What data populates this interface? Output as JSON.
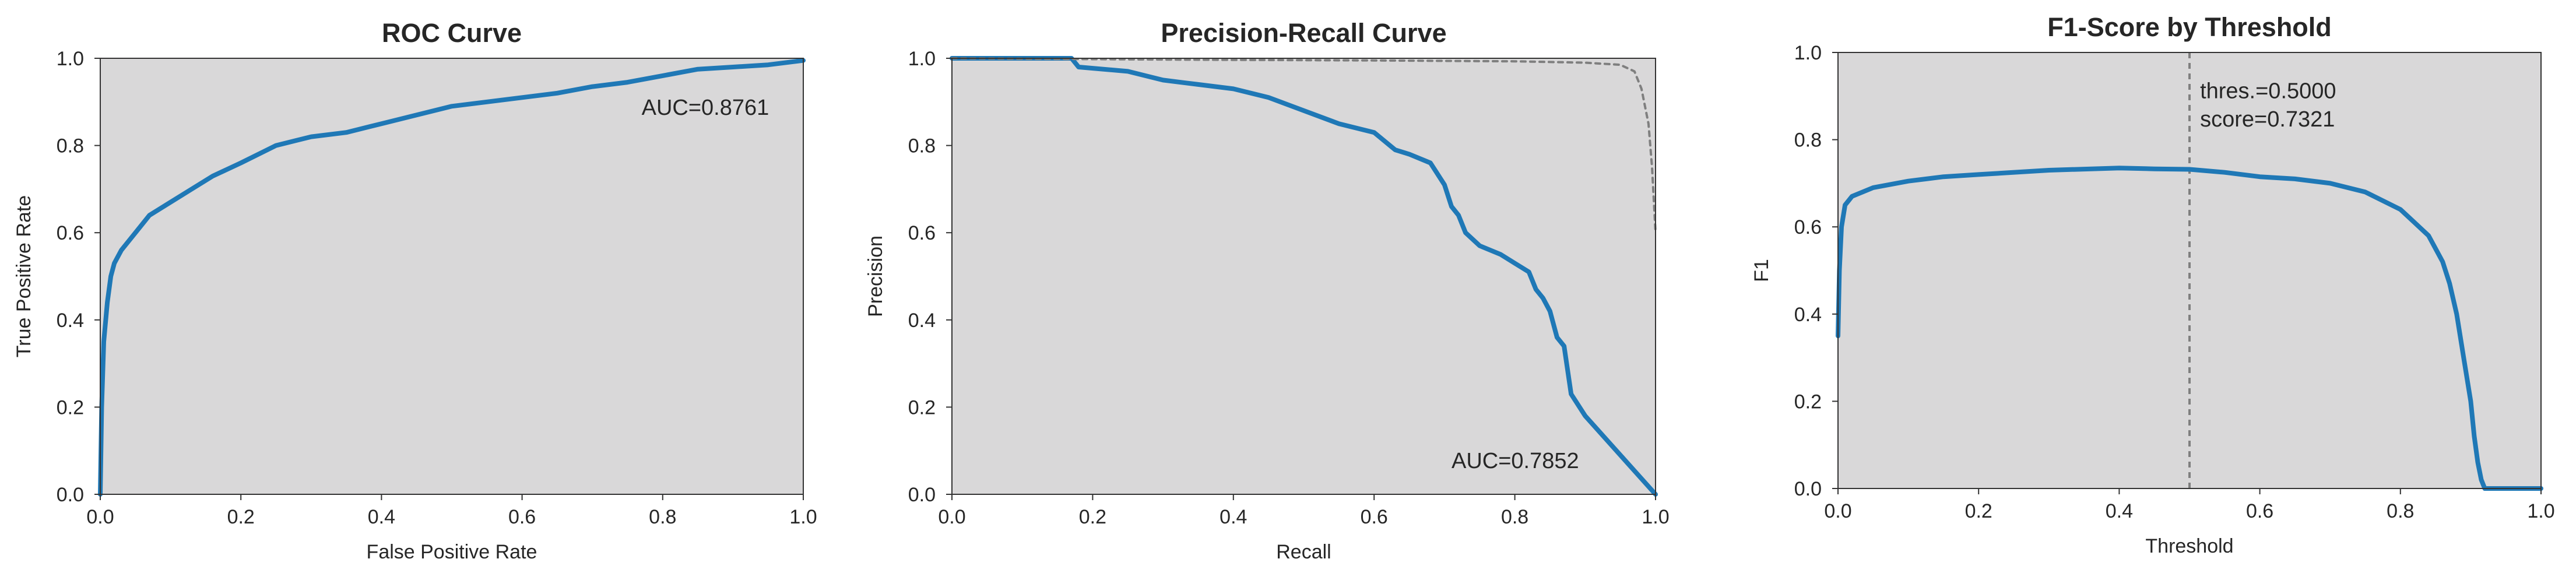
{
  "colors": {
    "plot_bg": "#d9d8d9",
    "line": "#1f78b6",
    "ref_line": "#7f7f7f",
    "axis": "#333333",
    "text": "#262626"
  },
  "chart_data": [
    {
      "type": "line",
      "title": "ROC Curve",
      "xlabel": "False Positive Rate",
      "ylabel": "True Positive Rate",
      "xlim": [
        0,
        1
      ],
      "ylim": [
        0,
        1
      ],
      "xticks": [
        "0.0",
        "0.2",
        "0.4",
        "0.6",
        "0.8",
        "1.0"
      ],
      "yticks": [
        "0.0",
        "0.2",
        "0.4",
        "0.6",
        "0.8",
        "1.0"
      ],
      "grid": false,
      "annotations": [
        {
          "text": "AUC=0.8761",
          "x": 0.77,
          "y": 0.87
        }
      ],
      "series": [
        {
          "x": [
            0,
            0.002,
            0.005,
            0.01,
            0.015,
            0.02,
            0.03,
            0.04,
            0.05,
            0.07,
            0.1,
            0.13,
            0.16,
            0.2,
            0.25,
            0.3,
            0.35,
            0.4,
            0.45,
            0.5,
            0.55,
            0.6,
            0.65,
            0.7,
            0.75,
            0.8,
            0.85,
            0.9,
            0.95,
            1.0
          ],
          "y": [
            0,
            0.2,
            0.35,
            0.44,
            0.5,
            0.53,
            0.56,
            0.58,
            0.6,
            0.64,
            0.67,
            0.7,
            0.73,
            0.76,
            0.8,
            0.82,
            0.83,
            0.85,
            0.87,
            0.89,
            0.9,
            0.91,
            0.92,
            0.935,
            0.945,
            0.96,
            0.975,
            0.98,
            0.985,
            0.995
          ]
        }
      ]
    },
    {
      "type": "line",
      "title": "Precision-Recall Curve",
      "xlabel": "Recall",
      "ylabel": "Precision",
      "xlim": [
        0,
        1
      ],
      "ylim": [
        0,
        1
      ],
      "xticks": [
        "0.0",
        "0.2",
        "0.4",
        "0.6",
        "0.8",
        "1.0"
      ],
      "yticks": [
        "0.0",
        "0.2",
        "0.4",
        "0.6",
        "0.8",
        "1.0"
      ],
      "grid": false,
      "annotations": [
        {
          "text": "AUC=0.7852",
          "x": 0.71,
          "y": 0.06
        }
      ],
      "series": [
        {
          "style": "solid",
          "x": [
            0,
            0.17,
            0.18,
            0.25,
            0.3,
            0.35,
            0.4,
            0.45,
            0.5,
            0.55,
            0.6,
            0.63,
            0.65,
            0.68,
            0.7,
            0.71,
            0.72,
            0.73,
            0.75,
            0.78,
            0.8,
            0.82,
            0.83,
            0.84,
            0.85,
            0.86,
            0.87,
            0.88,
            0.9,
            0.95,
            1.0
          ],
          "y": [
            1.0,
            1.0,
            0.98,
            0.97,
            0.95,
            0.94,
            0.93,
            0.91,
            0.88,
            0.85,
            0.83,
            0.79,
            0.78,
            0.76,
            0.71,
            0.66,
            0.64,
            0.6,
            0.57,
            0.55,
            0.53,
            0.51,
            0.47,
            0.45,
            0.42,
            0.36,
            0.34,
            0.23,
            0.18,
            0.09,
            0.0
          ]
        },
        {
          "style": "dashed",
          "x": [
            0,
            0.3,
            0.6,
            0.8,
            0.9,
            0.95,
            0.97,
            0.98,
            0.99,
            0.995,
            1.0
          ],
          "y": [
            1.0,
            0.997,
            0.995,
            0.993,
            0.99,
            0.985,
            0.97,
            0.93,
            0.85,
            0.75,
            0.6
          ]
        }
      ]
    },
    {
      "type": "line",
      "title": "F1-Score by Threshold",
      "xlabel": "Threshold",
      "ylabel": "F1",
      "xlim": [
        0,
        1
      ],
      "ylim": [
        0,
        1
      ],
      "xticks": [
        "0.0",
        "0.2",
        "0.4",
        "0.6",
        "0.8",
        "1.0"
      ],
      "yticks": [
        "0.0",
        "0.2",
        "0.4",
        "0.6",
        "0.8",
        "1.0"
      ],
      "grid": false,
      "vline": {
        "x": 0.5
      },
      "annotations": [
        {
          "text": "thres.=0.5000",
          "x": 0.515,
          "y": 0.895
        },
        {
          "text": "score=0.7321",
          "x": 0.515,
          "y": 0.83
        }
      ],
      "series": [
        {
          "x": [
            0.0,
            0.002,
            0.005,
            0.01,
            0.02,
            0.05,
            0.1,
            0.15,
            0.2,
            0.3,
            0.4,
            0.45,
            0.5,
            0.55,
            0.6,
            0.65,
            0.7,
            0.75,
            0.8,
            0.82,
            0.84,
            0.86,
            0.87,
            0.88,
            0.89,
            0.9,
            0.905,
            0.91,
            0.915,
            0.92,
            1.0
          ],
          "y": [
            0.35,
            0.5,
            0.6,
            0.65,
            0.67,
            0.69,
            0.705,
            0.715,
            0.72,
            0.73,
            0.735,
            0.733,
            0.732,
            0.725,
            0.715,
            0.71,
            0.7,
            0.68,
            0.64,
            0.61,
            0.58,
            0.52,
            0.47,
            0.4,
            0.3,
            0.2,
            0.12,
            0.06,
            0.02,
            0.0,
            0.0
          ]
        }
      ]
    }
  ]
}
